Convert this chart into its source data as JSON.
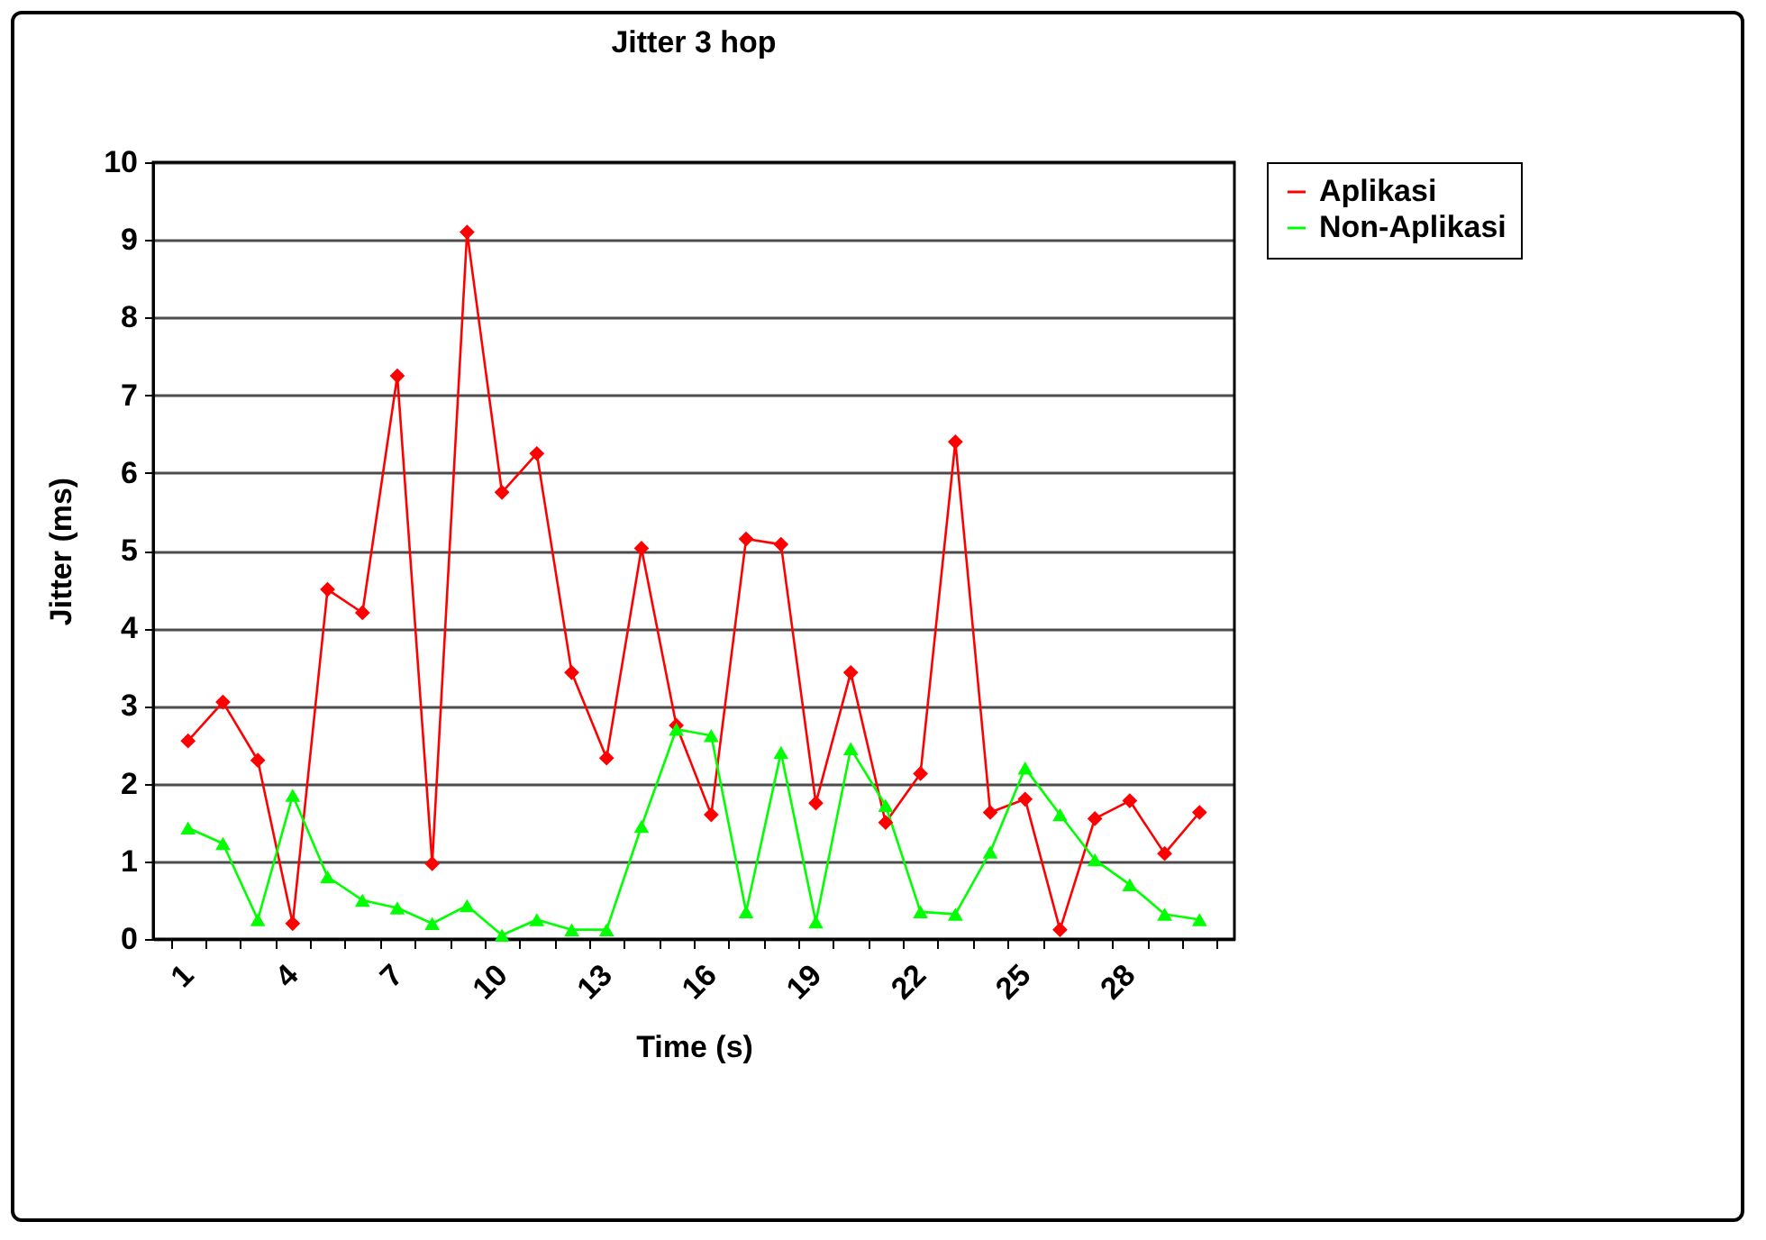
{
  "chart_data": {
    "type": "line",
    "title": "Jitter  3 hop",
    "xlabel": "Time (s)",
    "ylabel": "Jitter (ms)",
    "categories": [
      "1",
      null,
      null,
      "4",
      null,
      null,
      "7",
      null,
      null,
      "10",
      null,
      null,
      "13",
      null,
      null,
      "16",
      null,
      null,
      "19",
      null,
      null,
      "22",
      null,
      null,
      "25",
      null,
      null,
      "28",
      null,
      null
    ],
    "series": [
      {
        "name": "Aplikasi",
        "color": "#ff0000",
        "marker": "diamond",
        "values": [
          2.55,
          3.05,
          2.3,
          0.2,
          4.5,
          4.2,
          7.25,
          0.97,
          9.1,
          5.75,
          6.25,
          3.43,
          2.33,
          5.03,
          2.75,
          1.6,
          5.15,
          5.08,
          1.75,
          3.43,
          1.5,
          2.13,
          6.4,
          1.63,
          1.8,
          0.12,
          1.55,
          1.78,
          1.1,
          1.63
        ]
      },
      {
        "name": "Non-Aplikasi",
        "color": "#00ff00",
        "marker": "triangle",
        "values": [
          1.43,
          1.23,
          0.25,
          1.85,
          0.8,
          0.5,
          0.4,
          0.2,
          0.43,
          0.05,
          0.25,
          0.12,
          0.12,
          1.45,
          2.7,
          2.62,
          0.35,
          2.4,
          0.22,
          2.45,
          1.72,
          0.35,
          0.32,
          1.12,
          2.2,
          1.6,
          1.02,
          0.7,
          0.32,
          0.25
        ]
      }
    ],
    "ylim": [
      0,
      10
    ],
    "yticks": [
      0,
      1,
      2,
      3,
      4,
      5,
      6,
      7,
      8,
      9,
      10
    ],
    "grid": "y",
    "legend": "right"
  }
}
